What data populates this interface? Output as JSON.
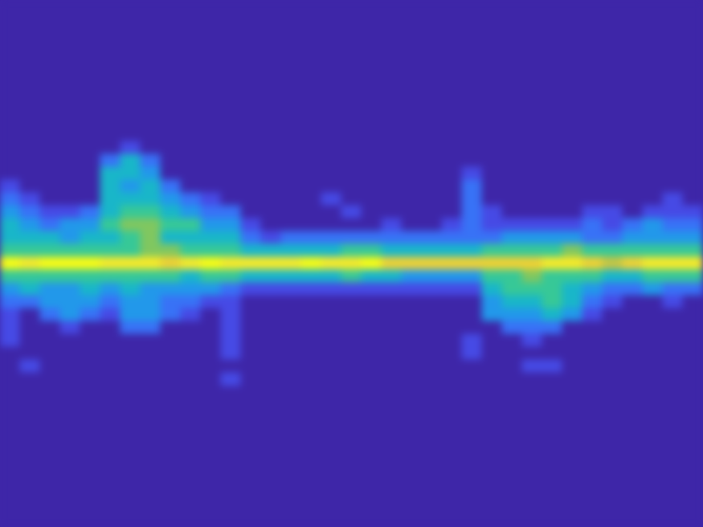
{
  "chart_data": {
    "type": "heatmap",
    "tick_labels": false,
    "grid": false,
    "xlim": [
      0,
      35
    ],
    "ylim": [
      0,
      41
    ],
    "color_range": [
      0,
      10
    ],
    "x": [
      0.5,
      1.5,
      2.5,
      3.5,
      4.5,
      5.5,
      6.5,
      7.5,
      8.5,
      9.5,
      10.5,
      11.5,
      12.5,
      13.5,
      14.5,
      15.5,
      16.5,
      17.5,
      18.5,
      19.5,
      20.5,
      21.5,
      22.5,
      23.5,
      24.5,
      25.5,
      26.5,
      27.5,
      28.5,
      29.5,
      30.5,
      31.5,
      32.5,
      33.5,
      34.5
    ],
    "y": [
      29.5,
      28.5,
      27.5,
      26.5,
      25.5,
      24.5,
      23.5,
      22.5,
      21.5,
      20.5,
      19.5,
      18.5,
      17.5,
      16.5,
      15.5,
      14.5,
      13.5,
      12.5,
      11.5
    ],
    "values": [
      [
        0,
        0,
        0,
        0,
        0,
        0,
        1,
        0,
        0,
        0,
        0,
        0,
        0,
        0,
        0,
        0,
        0,
        0,
        0,
        0,
        0,
        0,
        0,
        0,
        0,
        0,
        0,
        0,
        0,
        0,
        0,
        0,
        0,
        0,
        0
      ],
      [
        0,
        0,
        0,
        0,
        0,
        2,
        4,
        2,
        0,
        0,
        0,
        0,
        0,
        0,
        0,
        0,
        0,
        0,
        0,
        0,
        0,
        0,
        0,
        0,
        0,
        0,
        0,
        0,
        0,
        0,
        0,
        0,
        0,
        0,
        0
      ],
      [
        0,
        0,
        0,
        0,
        0,
        4,
        4,
        3,
        0,
        0,
        0,
        0,
        0,
        0,
        0,
        0,
        0,
        0,
        0,
        0,
        0,
        0,
        0,
        1,
        0,
        0,
        0,
        0,
        0,
        0,
        0,
        0,
        0,
        0,
        0
      ],
      [
        1,
        0,
        0,
        0,
        0,
        4,
        3,
        4,
        2,
        0,
        0,
        0,
        0,
        0,
        0,
        0,
        0,
        0,
        0,
        0,
        0,
        0,
        0,
        2,
        0,
        0,
        0,
        0,
        0,
        0,
        0,
        0,
        0,
        0,
        0
      ],
      [
        2,
        1,
        0,
        0,
        0,
        4,
        4,
        4,
        3,
        2,
        1,
        0,
        0,
        0,
        0,
        0,
        1,
        0,
        0,
        0,
        0,
        0,
        0,
        2,
        0,
        0,
        0,
        0,
        0,
        0,
        0,
        0,
        0,
        1,
        0
      ],
      [
        3,
        2,
        1,
        1,
        2,
        4,
        5,
        5,
        4,
        3,
        2,
        2,
        0,
        0,
        0,
        0,
        0,
        1,
        0,
        0,
        0,
        0,
        0,
        2,
        1,
        0,
        0,
        0,
        0,
        1,
        1,
        0,
        1,
        1,
        1
      ],
      [
        4,
        3,
        2,
        3,
        3,
        5,
        6,
        6,
        5,
        5,
        3,
        3,
        1,
        0,
        0,
        0,
        0,
        0,
        0,
        1,
        0,
        0,
        1,
        2,
        1,
        1,
        1,
        1,
        1,
        2,
        1,
        2,
        3,
        2,
        2
      ],
      [
        4,
        4,
        4,
        3,
        4,
        4,
        5,
        6,
        4,
        4,
        4,
        4,
        2,
        1,
        2,
        2,
        2,
        2,
        2,
        2,
        2,
        2,
        2,
        2,
        2,
        3,
        3,
        3,
        3,
        2,
        2,
        3,
        3,
        3,
        3
      ],
      [
        5,
        5,
        5,
        5,
        5,
        5,
        5,
        6,
        6,
        5,
        5,
        5,
        4,
        4,
        4,
        4,
        4,
        5,
        5,
        4,
        4,
        4,
        4,
        4,
        5,
        5,
        5,
        5,
        6,
        5,
        5,
        5,
        5,
        5,
        5
      ],
      [
        10,
        9,
        10,
        10,
        10,
        9,
        9,
        9,
        8,
        9,
        10,
        9,
        9,
        9,
        9,
        10,
        9,
        9,
        10,
        8,
        8,
        8,
        8,
        8,
        8,
        8,
        8,
        9,
        9,
        8,
        7,
        8,
        9,
        9,
        9
      ],
      [
        5,
        5,
        5,
        5,
        5,
        5,
        5,
        5,
        5,
        4,
        5,
        5,
        4,
        4,
        4,
        4,
        4,
        5,
        4,
        4,
        3,
        3,
        3,
        3,
        5,
        5,
        6,
        5,
        5,
        5,
        4,
        4,
        5,
        5,
        5
      ],
      [
        3,
        4,
        3,
        3,
        4,
        3,
        4,
        3,
        3,
        3,
        3,
        2,
        1,
        1,
        1,
        1,
        1,
        1,
        1,
        1,
        1,
        1,
        1,
        1,
        4,
        5,
        5,
        5,
        4,
        3,
        2,
        2,
        3,
        2,
        2
      ],
      [
        2,
        2,
        3,
        3,
        3,
        2,
        3,
        3,
        2,
        2,
        1,
        1,
        0,
        0,
        0,
        0,
        0,
        0,
        0,
        0,
        0,
        0,
        0,
        0,
        3,
        4,
        4,
        5,
        4,
        2,
        1,
        0,
        0,
        1,
        0
      ],
      [
        1,
        0,
        2,
        3,
        2,
        1,
        3,
        3,
        2,
        1,
        0,
        1,
        0,
        0,
        0,
        0,
        0,
        0,
        0,
        0,
        0,
        0,
        0,
        0,
        3,
        3,
        3,
        4,
        3,
        1,
        0,
        0,
        0,
        0,
        0
      ],
      [
        1,
        0,
        0,
        1,
        0,
        0,
        2,
        2,
        0,
        0,
        0,
        1,
        0,
        0,
        0,
        0,
        0,
        0,
        0,
        0,
        0,
        0,
        0,
        0,
        0,
        2,
        2,
        2,
        0,
        0,
        0,
        0,
        0,
        0,
        0
      ],
      [
        1,
        0,
        0,
        0,
        0,
        0,
        0,
        0,
        0,
        0,
        0,
        1,
        0,
        0,
        0,
        0,
        0,
        0,
        0,
        0,
        0,
        0,
        0,
        1,
        0,
        0,
        1,
        0,
        0,
        0,
        0,
        0,
        0,
        0,
        0
      ],
      [
        0,
        0,
        0,
        0,
        0,
        0,
        0,
        0,
        0,
        0,
        0,
        1,
        0,
        0,
        0,
        0,
        0,
        0,
        0,
        0,
        0,
        0,
        0,
        1,
        0,
        0,
        0,
        0,
        0,
        0,
        0,
        0,
        0,
        0,
        0
      ],
      [
        0,
        1,
        0,
        0,
        0,
        0,
        0,
        0,
        0,
        0,
        0,
        0,
        0,
        0,
        0,
        0,
        0,
        0,
        0,
        0,
        0,
        0,
        0,
        0,
        0,
        0,
        1,
        1,
        0,
        0,
        0,
        0,
        0,
        0,
        0
      ],
      [
        0,
        0,
        0,
        0,
        0,
        0,
        0,
        0,
        0,
        0,
        0,
        1,
        0,
        0,
        0,
        0,
        0,
        0,
        0,
        0,
        0,
        0,
        0,
        0,
        0,
        0,
        0,
        0,
        0,
        0,
        0,
        0,
        0,
        0,
        0
      ]
    ]
  }
}
